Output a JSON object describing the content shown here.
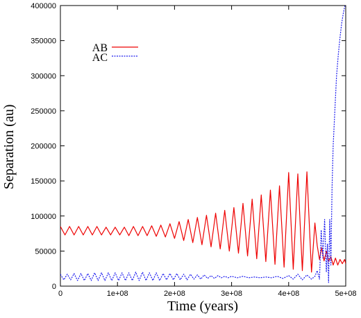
{
  "chart_data": {
    "type": "line",
    "xlabel": "Time (years)",
    "ylabel": "Separation (au)",
    "xlim": [
      0,
      500000000
    ],
    "ylim": [
      0,
      400000
    ],
    "x_ticks": [
      0,
      100000000,
      200000000,
      300000000,
      400000000,
      500000000
    ],
    "x_tick_labels": [
      "0",
      "1e+08",
      "2e+08",
      "3e+08",
      "4e+08",
      "5e+08"
    ],
    "y_ticks": [
      0,
      50000,
      100000,
      150000,
      200000,
      250000,
      300000,
      350000,
      400000
    ],
    "y_tick_labels": [
      "0",
      "50000",
      "100000",
      "150000",
      "200000",
      "250000",
      "300000",
      "350000",
      "400000"
    ],
    "grid": false,
    "legend_position": "top-left",
    "series": [
      {
        "name": "AB",
        "color": "#ee0000",
        "style": "solid",
        "points": [
          [
            0,
            85000
          ],
          [
            8000000,
            73000
          ],
          [
            16000000,
            85000
          ],
          [
            24000000,
            73000
          ],
          [
            32000000,
            85000
          ],
          [
            40000000,
            73000
          ],
          [
            48000000,
            85000
          ],
          [
            56000000,
            73000
          ],
          [
            64000000,
            85000
          ],
          [
            72000000,
            73000
          ],
          [
            80000000,
            84000
          ],
          [
            88000000,
            73000
          ],
          [
            96000000,
            84000
          ],
          [
            104000000,
            73000
          ],
          [
            112000000,
            84000
          ],
          [
            120000000,
            72000
          ],
          [
            128000000,
            85000
          ],
          [
            136000000,
            72000
          ],
          [
            144000000,
            85000
          ],
          [
            152000000,
            72000
          ],
          [
            160000000,
            86000
          ],
          [
            168000000,
            71000
          ],
          [
            176000000,
            87000
          ],
          [
            184000000,
            70000
          ],
          [
            192000000,
            89000
          ],
          [
            200000000,
            68000
          ],
          [
            208000000,
            92000
          ],
          [
            216000000,
            65000
          ],
          [
            224000000,
            95000
          ],
          [
            232000000,
            62000
          ],
          [
            240000000,
            98000
          ],
          [
            248000000,
            59000
          ],
          [
            256000000,
            101000
          ],
          [
            264000000,
            56000
          ],
          [
            272000000,
            104000
          ],
          [
            280000000,
            53000
          ],
          [
            288000000,
            108000
          ],
          [
            296000000,
            50000
          ],
          [
            304000000,
            112000
          ],
          [
            312000000,
            47000
          ],
          [
            320000000,
            118000
          ],
          [
            328000000,
            43000
          ],
          [
            336000000,
            124000
          ],
          [
            344000000,
            39000
          ],
          [
            352000000,
            130000
          ],
          [
            360000000,
            35000
          ],
          [
            368000000,
            137000
          ],
          [
            376000000,
            31000
          ],
          [
            384000000,
            143000
          ],
          [
            392000000,
            27000
          ],
          [
            400000000,
            162000
          ],
          [
            408000000,
            24000
          ],
          [
            416000000,
            160000
          ],
          [
            424000000,
            22000
          ],
          [
            432000000,
            163000
          ],
          [
            440000000,
            20000
          ],
          [
            446000000,
            90000
          ],
          [
            450000000,
            58000
          ],
          [
            454000000,
            38000
          ],
          [
            458000000,
            55000
          ],
          [
            462000000,
            36000
          ],
          [
            466000000,
            50000
          ],
          [
            470000000,
            35000
          ],
          [
            474000000,
            42000
          ],
          [
            478000000,
            30000
          ],
          [
            482000000,
            40000
          ],
          [
            486000000,
            30000
          ],
          [
            490000000,
            38000
          ],
          [
            494000000,
            32000
          ],
          [
            498000000,
            38000
          ],
          [
            500000000,
            32000
          ]
        ]
      },
      {
        "name": "AC",
        "color": "#1a1aee",
        "style": "dashed",
        "points": [
          [
            0,
            17000
          ],
          [
            6000000,
            9000
          ],
          [
            12000000,
            17000
          ],
          [
            18000000,
            9000
          ],
          [
            24000000,
            18000
          ],
          [
            30000000,
            8000
          ],
          [
            36000000,
            18000
          ],
          [
            42000000,
            8000
          ],
          [
            48000000,
            18000
          ],
          [
            54000000,
            8000
          ],
          [
            60000000,
            19000
          ],
          [
            66000000,
            8000
          ],
          [
            72000000,
            19000
          ],
          [
            78000000,
            8000
          ],
          [
            84000000,
            19000
          ],
          [
            90000000,
            8000
          ],
          [
            96000000,
            19000
          ],
          [
            102000000,
            8000
          ],
          [
            108000000,
            19000
          ],
          [
            114000000,
            8000
          ],
          [
            120000000,
            19000
          ],
          [
            126000000,
            8000
          ],
          [
            132000000,
            20000
          ],
          [
            138000000,
            8000
          ],
          [
            144000000,
            20000
          ],
          [
            150000000,
            8000
          ],
          [
            156000000,
            19000
          ],
          [
            162000000,
            8000
          ],
          [
            168000000,
            19000
          ],
          [
            174000000,
            8000
          ],
          [
            180000000,
            18000
          ],
          [
            186000000,
            9000
          ],
          [
            192000000,
            18000
          ],
          [
            198000000,
            9000
          ],
          [
            204000000,
            18000
          ],
          [
            210000000,
            9000
          ],
          [
            216000000,
            17000
          ],
          [
            222000000,
            9000
          ],
          [
            228000000,
            17000
          ],
          [
            234000000,
            10000
          ],
          [
            240000000,
            16000
          ],
          [
            246000000,
            10000
          ],
          [
            252000000,
            16000
          ],
          [
            258000000,
            11000
          ],
          [
            264000000,
            15000
          ],
          [
            270000000,
            11000
          ],
          [
            276000000,
            15000
          ],
          [
            282000000,
            12000
          ],
          [
            288000000,
            14000
          ],
          [
            294000000,
            12000
          ],
          [
            300000000,
            14000
          ],
          [
            310000000,
            12000
          ],
          [
            320000000,
            14000
          ],
          [
            330000000,
            12000
          ],
          [
            340000000,
            13000
          ],
          [
            350000000,
            12000
          ],
          [
            360000000,
            13000
          ],
          [
            370000000,
            12000
          ],
          [
            380000000,
            14000
          ],
          [
            390000000,
            11000
          ],
          [
            400000000,
            15000
          ],
          [
            408000000,
            10000
          ],
          [
            416000000,
            17000
          ],
          [
            424000000,
            9000
          ],
          [
            432000000,
            16000
          ],
          [
            440000000,
            10000
          ],
          [
            446000000,
            14000
          ],
          [
            450000000,
            22000
          ],
          [
            454000000,
            10000
          ],
          [
            457000000,
            80000
          ],
          [
            460000000,
            40000
          ],
          [
            463000000,
            95000
          ],
          [
            466000000,
            20000
          ],
          [
            468000000,
            60000
          ],
          [
            470000000,
            5000
          ],
          [
            472000000,
            95000
          ],
          [
            474000000,
            30000
          ],
          [
            476000000,
            140000
          ],
          [
            478000000,
            200000
          ],
          [
            480000000,
            235000
          ],
          [
            482000000,
            268000
          ],
          [
            484000000,
            300000
          ],
          [
            487000000,
            330000
          ],
          [
            490000000,
            355000
          ],
          [
            493000000,
            375000
          ],
          [
            496000000,
            390000
          ],
          [
            500000000,
            405000
          ]
        ]
      }
    ]
  }
}
